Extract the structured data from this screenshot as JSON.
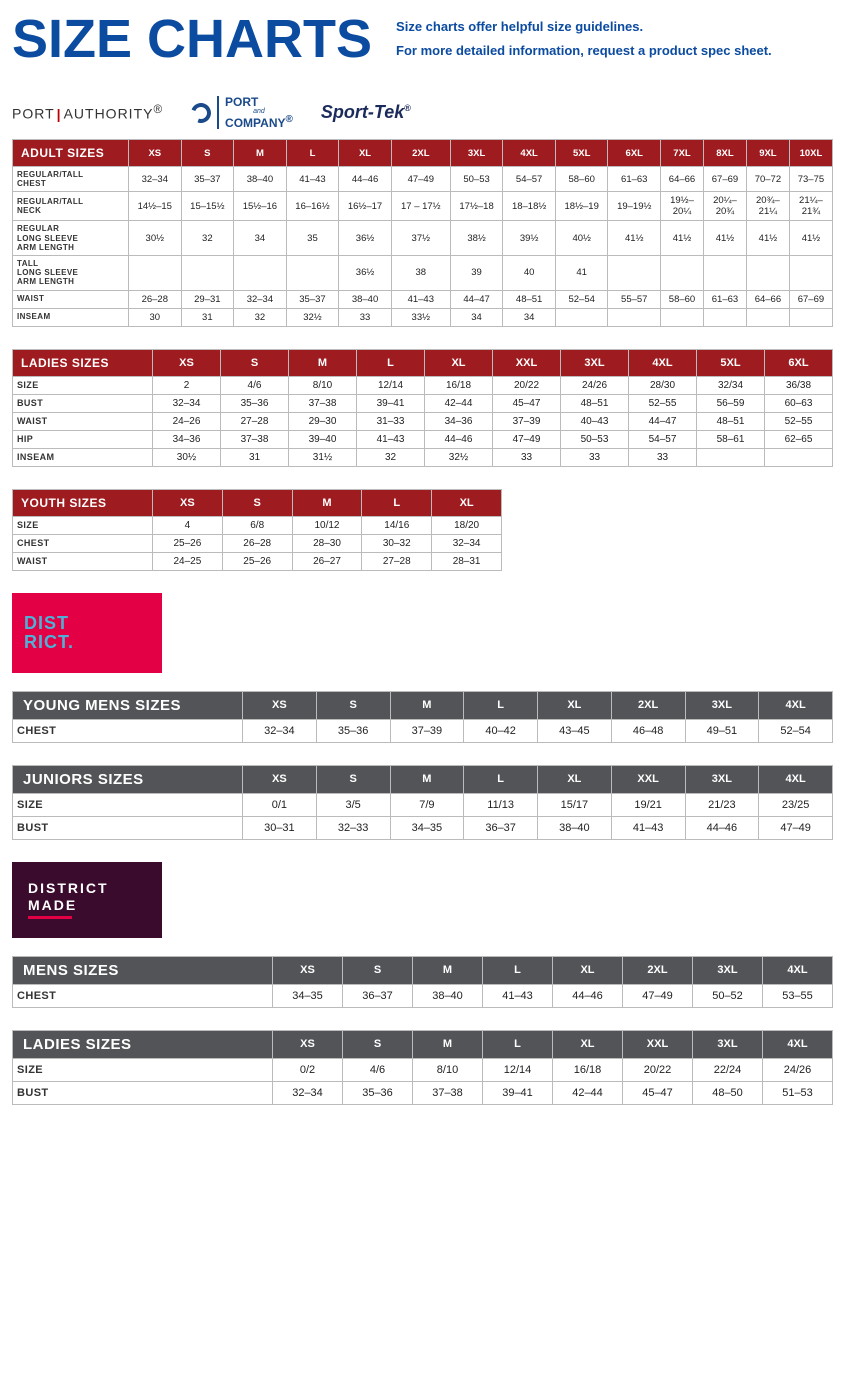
{
  "header": {
    "title": "SIZE CHARTS",
    "subtitle1": "Size charts offer helpful size guidelines.",
    "subtitle2": "For more detailed information, request a product spec sheet."
  },
  "brands": {
    "pa1": "PORT",
    "pa2": "AUTHORITY",
    "pa_reg": "®",
    "pc1": "PORT",
    "pc_and": "and",
    "pc2": "COMPANY",
    "pc_reg": "®",
    "st": "Sport-Tek",
    "st_reg": "®",
    "district1": "DIST",
    "district2": "RICT.",
    "dm1": "DISTRICT",
    "dm2": "MADE"
  },
  "colors": {
    "red_header": "#9e1b20",
    "gray_header": "#525457",
    "title_blue": "#0b4ba0",
    "district_bg": "#e30044",
    "district_fg": "#4db0d6",
    "dm_bg": "#3b0b2e"
  },
  "adult": {
    "title": "ADULT SIZES",
    "sizes": [
      "XS",
      "S",
      "M",
      "L",
      "XL",
      "2XL",
      "3XL",
      "4XL",
      "5XL",
      "6XL",
      "7XL",
      "8XL",
      "9XL",
      "10XL"
    ],
    "rows": [
      {
        "label": "REGULAR/TALL\nCHEST",
        "v": [
          "32–34",
          "35–37",
          "38–40",
          "41–43",
          "44–46",
          "47–49",
          "50–53",
          "54–57",
          "58–60",
          "61–63",
          "64–66",
          "67–69",
          "70–72",
          "73–75"
        ]
      },
      {
        "label": "REGULAR/TALL\nNECK",
        "v": [
          "14½–15",
          "15–15½",
          "15½–16",
          "16–16½",
          "16½–17",
          "17 – 17½",
          "17½–18",
          "18–18½",
          "18½–19",
          "19–19½",
          "19½–\n20¼",
          "20¼–\n20¾",
          "20¾–\n21¼",
          "21¼–\n21¾"
        ]
      },
      {
        "label": "REGULAR\nLONG SLEEVE\nARM LENGTH",
        "v": [
          "30½",
          "32",
          "34",
          "35",
          "36½",
          "37½",
          "38½",
          "39½",
          "40½",
          "41½",
          "41½",
          "41½",
          "41½",
          "41½"
        ]
      },
      {
        "label": "TALL\nLONG SLEEVE\nARM LENGTH",
        "v": [
          "",
          "",
          "",
          "",
          "36½",
          "38",
          "39",
          "40",
          "41",
          "",
          "",
          "",
          "",
          ""
        ]
      },
      {
        "label": "WAIST",
        "v": [
          "26–28",
          "29–31",
          "32–34",
          "35–37",
          "38–40",
          "41–43",
          "44–47",
          "48–51",
          "52–54",
          "55–57",
          "58–60",
          "61–63",
          "64–66",
          "67–69"
        ]
      },
      {
        "label": "INSEAM",
        "v": [
          "30",
          "31",
          "32",
          "32½",
          "33",
          "33½",
          "34",
          "34",
          "",
          "",
          "",
          "",
          "",
          ""
        ]
      }
    ]
  },
  "ladies": {
    "title": "LADIES SIZES",
    "sizes": [
      "XS",
      "S",
      "M",
      "L",
      "XL",
      "XXL",
      "3XL",
      "4XL",
      "5XL",
      "6XL"
    ],
    "rows": [
      {
        "label": "SIZE",
        "v": [
          "2",
          "4/6",
          "8/10",
          "12/14",
          "16/18",
          "20/22",
          "24/26",
          "28/30",
          "32/34",
          "36/38"
        ]
      },
      {
        "label": "BUST",
        "v": [
          "32–34",
          "35–36",
          "37–38",
          "39–41",
          "42–44",
          "45–47",
          "48–51",
          "52–55",
          "56–59",
          "60–63"
        ]
      },
      {
        "label": "WAIST",
        "v": [
          "24–26",
          "27–28",
          "29–30",
          "31–33",
          "34–36",
          "37–39",
          "40–43",
          "44–47",
          "48–51",
          "52–55"
        ]
      },
      {
        "label": "HIP",
        "v": [
          "34–36",
          "37–38",
          "39–40",
          "41–43",
          "44–46",
          "47–49",
          "50–53",
          "54–57",
          "58–61",
          "62–65"
        ]
      },
      {
        "label": "INSEAM",
        "v": [
          "30½",
          "31",
          "31½",
          "32",
          "32½",
          "33",
          "33",
          "33",
          "",
          ""
        ]
      }
    ]
  },
  "youth": {
    "title": "YOUTH SIZES",
    "sizes": [
      "XS",
      "S",
      "M",
      "L",
      "XL"
    ],
    "rows": [
      {
        "label": "SIZE",
        "v": [
          "4",
          "6/8",
          "10/12",
          "14/16",
          "18/20"
        ]
      },
      {
        "label": "CHEST",
        "v": [
          "25–26",
          "26–28",
          "28–30",
          "30–32",
          "32–34"
        ]
      },
      {
        "label": "WAIST",
        "v": [
          "24–25",
          "25–26",
          "26–27",
          "27–28",
          "28–31"
        ]
      }
    ]
  },
  "young_mens": {
    "title": "YOUNG MENS SIZES",
    "sizes": [
      "XS",
      "S",
      "M",
      "L",
      "XL",
      "2XL",
      "3XL",
      "4XL"
    ],
    "rows": [
      {
        "label": "CHEST",
        "v": [
          "32–34",
          "35–36",
          "37–39",
          "40–42",
          "43–45",
          "46–48",
          "49–51",
          "52–54"
        ]
      }
    ]
  },
  "juniors": {
    "title": "JUNIORS SIZES",
    "sizes": [
      "XS",
      "S",
      "M",
      "L",
      "XL",
      "XXL",
      "3XL",
      "4XL"
    ],
    "rows": [
      {
        "label": "SIZE",
        "v": [
          "0/1",
          "3/5",
          "7/9",
          "11/13",
          "15/17",
          "19/21",
          "21/23",
          "23/25"
        ]
      },
      {
        "label": "BUST",
        "v": [
          "30–31",
          "32–33",
          "34–35",
          "36–37",
          "38–40",
          "41–43",
          "44–46",
          "47–49"
        ]
      }
    ]
  },
  "mens": {
    "title": "MENS SIZES",
    "sizes": [
      "XS",
      "S",
      "M",
      "L",
      "XL",
      "2XL",
      "3XL",
      "4XL"
    ],
    "rows": [
      {
        "label": "CHEST",
        "v": [
          "34–35",
          "36–37",
          "38–40",
          "41–43",
          "44–46",
          "47–49",
          "50–52",
          "53–55"
        ]
      }
    ]
  },
  "dm_ladies": {
    "title": "LADIES SIZES",
    "sizes": [
      "XS",
      "S",
      "M",
      "L",
      "XL",
      "XXL",
      "3XL",
      "4XL"
    ],
    "rows": [
      {
        "label": "SIZE",
        "v": [
          "0/2",
          "4/6",
          "8/10",
          "12/14",
          "16/18",
          "20/22",
          "22/24",
          "24/26"
        ]
      },
      {
        "label": "BUST",
        "v": [
          "32–34",
          "35–36",
          "37–38",
          "39–41",
          "42–44",
          "45–47",
          "48–50",
          "51–53"
        ]
      }
    ]
  }
}
